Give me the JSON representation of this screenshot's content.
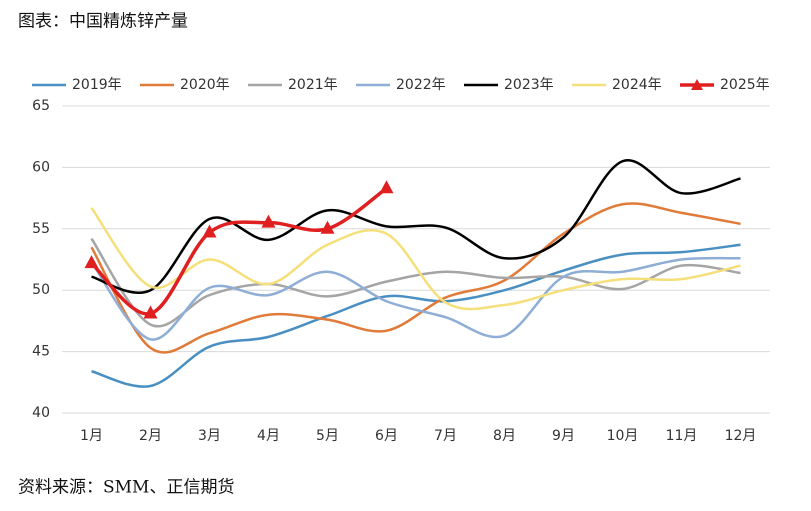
{
  "chart_data": {
    "type": "line",
    "title": "图表：中国精炼锌产量",
    "source": "资料来源：SMM、正信期货",
    "categories": [
      "1月",
      "2月",
      "3月",
      "4月",
      "5月",
      "6月",
      "7月",
      "8月",
      "9月",
      "10月",
      "11月",
      "12月"
    ],
    "ylim": [
      40,
      65
    ],
    "yticks": [
      40,
      45,
      50,
      55,
      60,
      65
    ],
    "grid": true,
    "legend": "top",
    "series": [
      {
        "name": "2019年",
        "color": "#4a8fc2",
        "values": [
          43.4,
          42.2,
          45.4,
          46.2,
          47.9,
          49.5,
          49.1,
          50.0,
          51.6,
          52.9,
          53.1,
          53.7
        ]
      },
      {
        "name": "2020年",
        "color": "#e07b39",
        "values": [
          53.5,
          45.3,
          46.5,
          48.0,
          47.6,
          46.7,
          49.4,
          50.8,
          54.6,
          57.0,
          56.3,
          55.4
        ]
      },
      {
        "name": "2021年",
        "color": "#a5a5a5",
        "values": [
          54.2,
          47.2,
          49.6,
          50.5,
          49.5,
          50.7,
          51.5,
          51.0,
          51.1,
          50.1,
          52.0,
          51.4
        ]
      },
      {
        "name": "2022年",
        "color": "#8eaed6",
        "values": [
          52.3,
          46.0,
          50.2,
          49.6,
          51.5,
          49.1,
          47.8,
          46.3,
          51.1,
          51.5,
          52.5,
          52.6
        ]
      },
      {
        "name": "2023年",
        "color": "#000000",
        "values": [
          51.1,
          50.0,
          55.8,
          54.1,
          56.5,
          55.2,
          55.1,
          52.6,
          54.3,
          60.5,
          57.9,
          59.1
        ]
      },
      {
        "name": "2024年",
        "color": "#f5df7a",
        "values": [
          56.7,
          50.3,
          52.5,
          50.5,
          53.7,
          54.6,
          49.0,
          48.8,
          50.0,
          50.9,
          50.9,
          52.0
        ]
      },
      {
        "name": "2025年",
        "color": "#e02020",
        "marker": "triangle",
        "values": [
          52.2,
          48.1,
          54.7,
          55.5,
          55.0,
          58.3,
          null,
          null,
          null,
          null,
          null,
          null
        ]
      }
    ]
  }
}
